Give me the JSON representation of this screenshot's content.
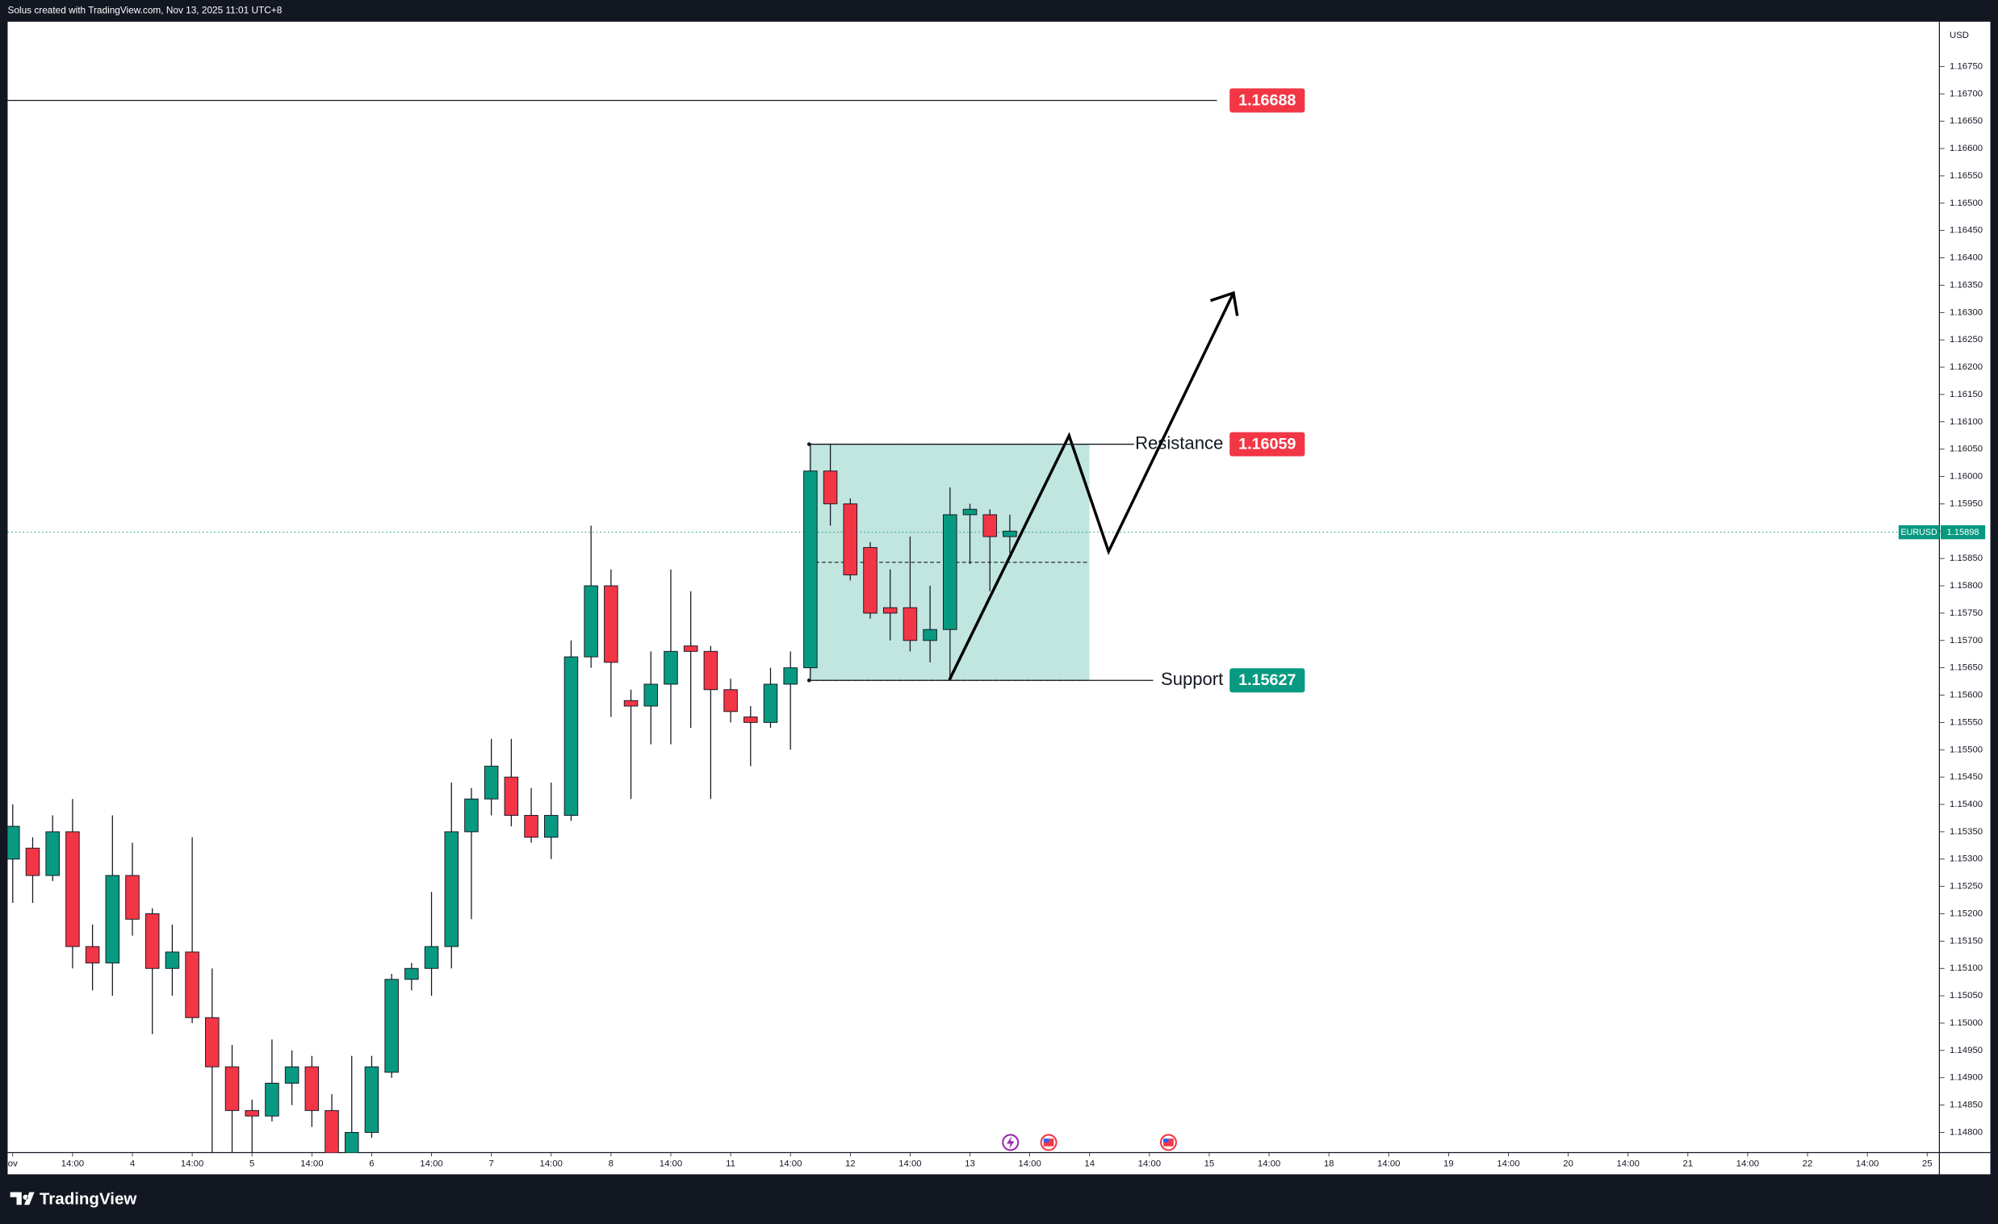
{
  "header": {
    "caption": "Solus created with TradingView.com, Nov 13, 2025 11:01 UTC+8"
  },
  "chart_data": {
    "type": "candlestick",
    "symbol": "EURUSD",
    "currency": "USD",
    "up_color": "#089981",
    "down_color": "#f23645",
    "grid": false,
    "categories": [
      "ov",
      null,
      null,
      "14:00",
      null,
      null,
      "4",
      null,
      null,
      "14:00",
      null,
      null,
      "5",
      null,
      null,
      "14:00",
      null,
      null,
      "6",
      null,
      null,
      "14:00",
      null,
      null,
      "7",
      null,
      null,
      "14:00",
      null,
      null,
      "8",
      null,
      null,
      "14:00",
      null,
      null,
      "11",
      null,
      null,
      "14:00",
      null,
      null,
      "12",
      null,
      null,
      "14:00",
      null,
      null,
      "13",
      null,
      null,
      "14:00",
      null,
      null,
      "14",
      null,
      null,
      "14:00",
      null,
      null,
      "15",
      null,
      null,
      "14:00",
      null,
      null,
      "18",
      null,
      null,
      "14:00",
      null,
      null,
      "19",
      null,
      null,
      "14:00",
      null,
      null,
      "20",
      null,
      null,
      "14:00",
      null,
      null,
      "21",
      null,
      null,
      "14:00",
      null,
      null,
      "22",
      null,
      null,
      "14:00",
      null,
      null,
      "25"
    ],
    "open": [
      1.153,
      1.1532,
      1.1527,
      1.1535,
      1.1514,
      1.1511,
      1.1527,
      1.152,
      1.151,
      1.1513,
      1.1501,
      1.1492,
      1.1484,
      1.1483,
      1.1489,
      1.1492,
      1.1484,
      1.1476,
      1.148,
      1.1491,
      1.1508,
      1.151,
      1.1514,
      1.1535,
      1.1541,
      1.1545,
      1.1538,
      1.1534,
      1.1538,
      1.1567,
      1.158,
      1.1559,
      1.1558,
      1.1562,
      1.1569,
      1.1568,
      1.1561,
      1.1556,
      1.1555,
      1.1562,
      1.1565,
      1.1601,
      1.1595,
      1.1587,
      1.1576,
      1.1576,
      1.157,
      1.1572,
      1.1593,
      1.1593,
      1.1589,
      null,
      null,
      null,
      null,
      null,
      null,
      null,
      null,
      null,
      null,
      null,
      null,
      null,
      null,
      null,
      null,
      null,
      null,
      null,
      null,
      null,
      null,
      null,
      null,
      null,
      null,
      null,
      null,
      null,
      null,
      null,
      null,
      null,
      null,
      null,
      null,
      null,
      null,
      null,
      null,
      null,
      null,
      null,
      null,
      null,
      null
    ],
    "high": [
      1.154,
      1.1534,
      1.1538,
      1.1541,
      1.1518,
      1.1538,
      1.1533,
      1.1521,
      1.1518,
      1.1534,
      1.151,
      1.1496,
      1.1486,
      1.1497,
      1.1495,
      1.1494,
      1.1487,
      1.1494,
      1.1494,
      1.1509,
      1.1511,
      1.1524,
      1.1544,
      1.1543,
      1.1552,
      1.1552,
      1.1543,
      1.1544,
      1.157,
      1.1591,
      1.1583,
      1.1561,
      1.1568,
      1.1583,
      1.1579,
      1.1569,
      1.1563,
      1.1558,
      1.1565,
      1.1568,
      1.1606,
      1.1606,
      1.1596,
      1.1588,
      1.1583,
      1.1589,
      1.158,
      1.1598,
      1.1595,
      1.1594,
      1.1593,
      null,
      null,
      null,
      null,
      null,
      null,
      null,
      null,
      null,
      null,
      null,
      null,
      null,
      null,
      null,
      null,
      null,
      null,
      null,
      null,
      null,
      null,
      null,
      null,
      null,
      null,
      null,
      null,
      null,
      null,
      null,
      null,
      null,
      null,
      null,
      null,
      null,
      null,
      null,
      null,
      null,
      null,
      null,
      null,
      null,
      null
    ],
    "low": [
      1.1522,
      1.1522,
      1.1526,
      1.151,
      1.1506,
      1.1505,
      1.1516,
      1.1498,
      1.1505,
      1.15,
      1.1476,
      1.1476,
      1.1476,
      1.1482,
      1.1485,
      1.1481,
      1.1474,
      1.1474,
      1.1479,
      1.149,
      1.1506,
      1.1505,
      1.151,
      1.1519,
      1.1538,
      1.1536,
      1.1533,
      1.153,
      1.1537,
      1.1565,
      1.1556,
      1.1541,
      1.1551,
      1.1551,
      1.1554,
      1.1541,
      1.1555,
      1.1547,
      1.1554,
      1.155,
      1.1563,
      1.1591,
      1.1581,
      1.1574,
      1.157,
      1.1568,
      1.1566,
      1.1563,
      1.1584,
      1.1579,
      1.1586,
      null,
      null,
      null,
      null,
      null,
      null,
      null,
      null,
      null,
      null,
      null,
      null,
      null,
      null,
      null,
      null,
      null,
      null,
      null,
      null,
      null,
      null,
      null,
      null,
      null,
      null,
      null,
      null,
      null,
      null,
      null,
      null,
      null,
      null,
      null,
      null,
      null,
      null,
      null,
      null,
      null,
      null,
      null,
      null,
      null,
      null
    ],
    "close": [
      1.1536,
      1.1527,
      1.1535,
      1.1514,
      1.1511,
      1.1527,
      1.1519,
      1.151,
      1.1513,
      1.1501,
      1.1492,
      1.1484,
      1.1483,
      1.1489,
      1.1492,
      1.1484,
      1.1476,
      1.148,
      1.1492,
      1.1508,
      1.151,
      1.1514,
      1.1535,
      1.1541,
      1.1547,
      1.1538,
      1.1534,
      1.1538,
      1.1567,
      1.158,
      1.1566,
      1.1558,
      1.1562,
      1.1568,
      1.1568,
      1.1561,
      1.1557,
      1.1555,
      1.1562,
      1.1565,
      1.1601,
      1.1595,
      1.1582,
      1.1575,
      1.1575,
      1.157,
      1.1572,
      1.1593,
      1.1594,
      1.1589,
      1.159,
      null,
      null,
      null,
      null,
      null,
      null,
      null,
      null,
      null,
      null,
      null,
      null,
      null,
      null,
      null,
      null,
      null,
      null,
      null,
      null,
      null,
      null,
      null,
      null,
      null,
      null,
      null,
      null,
      null,
      null,
      null,
      null,
      null,
      null,
      null,
      null,
      null,
      null,
      null,
      null,
      null,
      null,
      null,
      null,
      null,
      null
    ],
    "last_price": 1.15898,
    "levels": [
      {
        "value": 1.16688,
        "color": "#f23645"
      },
      {
        "text": "Resistance",
        "value": 1.16059,
        "color": "#f23645"
      },
      {
        "text": "Support",
        "value": 1.15627,
        "color": "#089981"
      }
    ],
    "ylim": [
      1.14763,
      1.16832
    ],
    "yticks": [
      {
        "value": 1.148,
        "label": "1.14800"
      },
      {
        "value": 1.1485,
        "label": "1.14850"
      },
      {
        "value": 1.149,
        "label": "1.14900"
      },
      {
        "value": 1.1495,
        "label": "1.14950"
      },
      {
        "value": 1.15,
        "label": "1.15000"
      },
      {
        "value": 1.1505,
        "label": "1.15050"
      },
      {
        "value": 1.151,
        "label": "1.15100"
      },
      {
        "value": 1.1515,
        "label": "1.15150"
      },
      {
        "value": 1.152,
        "label": "1.15200"
      },
      {
        "value": 1.1525,
        "label": "1.15250"
      },
      {
        "value": 1.153,
        "label": "1.15300"
      },
      {
        "value": 1.1535,
        "label": "1.15350"
      },
      {
        "value": 1.154,
        "label": "1.15400"
      },
      {
        "value": 1.1545,
        "label": "1.15450"
      },
      {
        "value": 1.155,
        "label": "1.15500"
      },
      {
        "value": 1.1555,
        "label": "1.15550"
      },
      {
        "value": 1.156,
        "label": "1.15600"
      },
      {
        "value": 1.1565,
        "label": "1.15650"
      },
      {
        "value": 1.157,
        "label": "1.15700"
      },
      {
        "value": 1.1575,
        "label": "1.15750"
      },
      {
        "value": 1.158,
        "label": "1.15800"
      },
      {
        "value": 1.1585,
        "label": "1.15850"
      },
      {
        "value": 1.159,
        "label": "1.15900"
      },
      {
        "value": 1.1595,
        "label": "1.15950"
      },
      {
        "value": 1.16,
        "label": "1.16000"
      },
      {
        "value": 1.1605,
        "label": "1.16050"
      },
      {
        "value": 1.161,
        "label": "1.16100"
      },
      {
        "value": 1.1615,
        "label": "1.16150"
      },
      {
        "value": 1.162,
        "label": "1.16200"
      },
      {
        "value": 1.1625,
        "label": "1.16250"
      },
      {
        "value": 1.163,
        "label": "1.16300"
      },
      {
        "value": 1.1635,
        "label": "1.16350"
      },
      {
        "value": 1.164,
        "label": "1.16400"
      },
      {
        "value": 1.1645,
        "label": "1.16450"
      },
      {
        "value": 1.165,
        "label": "1.16500"
      },
      {
        "value": 1.1655,
        "label": "1.16550"
      },
      {
        "value": 1.166,
        "label": "1.16600"
      },
      {
        "value": 1.1665,
        "label": "1.16650"
      },
      {
        "value": 1.167,
        "label": "1.16700"
      },
      {
        "value": 1.1675,
        "label": "1.16750"
      }
    ]
  },
  "footer": {
    "brand": "TradingView"
  }
}
